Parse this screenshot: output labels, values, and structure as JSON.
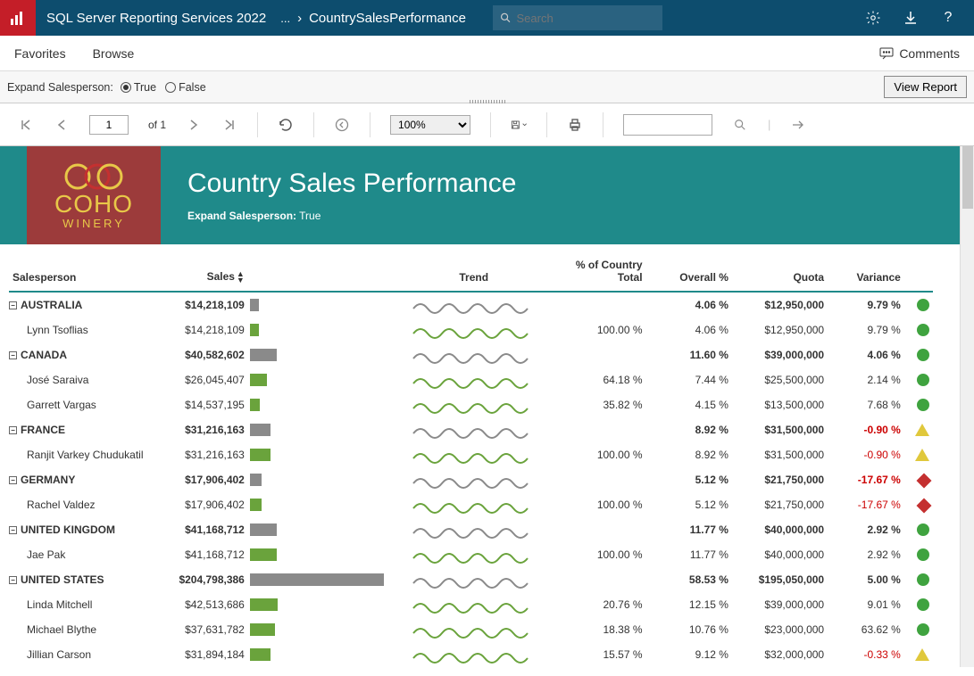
{
  "header": {
    "app_title": "SQL Server Reporting Services 2022",
    "ellipsis": "...",
    "chevron": "›",
    "page_name": "CountrySalesPerformance",
    "search_placeholder": "Search"
  },
  "menubar": {
    "favorites": "Favorites",
    "browse": "Browse",
    "comments": "Comments"
  },
  "params": {
    "label": "Expand Salesperson:",
    "true_label": "True",
    "false_label": "False",
    "selected": "true",
    "view_btn": "View Report"
  },
  "toolbar": {
    "page_value": "1",
    "page_of": "of 1",
    "zoom": "100%"
  },
  "banner": {
    "logo_top": "COHO",
    "logo_bottom": "WINERY",
    "title": "Country Sales Performance",
    "sub_label": "Expand Salesperson:",
    "sub_value": "True"
  },
  "columns": {
    "salesperson": "Salesperson",
    "sales": "Sales",
    "trend": "Trend",
    "pct_country": "% of Country Total",
    "overall": "Overall %",
    "quota": "Quota",
    "variance": "Variance"
  },
  "max_sales": 204798386,
  "groups": [
    {
      "country": "AUSTRALIA",
      "sales": "$14,218,109",
      "sales_n": 14218109,
      "overall": "4.06 %",
      "quota": "$12,950,000",
      "variance": "9.79 %",
      "var_neg": false,
      "ind": "green",
      "people": [
        {
          "name": "Lynn Tsoflias",
          "sales": "$14,218,109",
          "sales_n": 14218109,
          "pct": "100.00 %",
          "overall": "4.06 %",
          "quota": "$12,950,000",
          "variance": "9.79 %",
          "var_neg": false,
          "ind": "green"
        }
      ]
    },
    {
      "country": "CANADA",
      "sales": "$40,582,602",
      "sales_n": 40582602,
      "overall": "11.60 %",
      "quota": "$39,000,000",
      "variance": "4.06 %",
      "var_neg": false,
      "ind": "green",
      "people": [
        {
          "name": "José Saraiva",
          "sales": "$26,045,407",
          "sales_n": 26045407,
          "pct": "64.18 %",
          "overall": "7.44 %",
          "quota": "$25,500,000",
          "variance": "2.14 %",
          "var_neg": false,
          "ind": "green"
        },
        {
          "name": "Garrett Vargas",
          "sales": "$14,537,195",
          "sales_n": 14537195,
          "pct": "35.82 %",
          "overall": "4.15 %",
          "quota": "$13,500,000",
          "variance": "7.68 %",
          "var_neg": false,
          "ind": "green"
        }
      ]
    },
    {
      "country": "FRANCE",
      "sales": "$31,216,163",
      "sales_n": 31216163,
      "overall": "8.92 %",
      "quota": "$31,500,000",
      "variance": "-0.90 %",
      "var_neg": true,
      "ind": "yellow",
      "people": [
        {
          "name": "Ranjit Varkey Chudukatil",
          "sales": "$31,216,163",
          "sales_n": 31216163,
          "pct": "100.00 %",
          "overall": "8.92 %",
          "quota": "$31,500,000",
          "variance": "-0.90 %",
          "var_neg": true,
          "ind": "yellow"
        }
      ]
    },
    {
      "country": "GERMANY",
      "sales": "$17,906,402",
      "sales_n": 17906402,
      "overall": "5.12 %",
      "quota": "$21,750,000",
      "variance": "-17.67 %",
      "var_neg": true,
      "ind": "red",
      "people": [
        {
          "name": "Rachel Valdez",
          "sales": "$17,906,402",
          "sales_n": 17906402,
          "pct": "100.00 %",
          "overall": "5.12 %",
          "quota": "$21,750,000",
          "variance": "-17.67 %",
          "var_neg": true,
          "ind": "red"
        }
      ]
    },
    {
      "country": "UNITED KINGDOM",
      "sales": "$41,168,712",
      "sales_n": 41168712,
      "overall": "11.77 %",
      "quota": "$40,000,000",
      "variance": "2.92 %",
      "var_neg": false,
      "ind": "green",
      "people": [
        {
          "name": "Jae Pak",
          "sales": "$41,168,712",
          "sales_n": 41168712,
          "pct": "100.00 %",
          "overall": "11.77 %",
          "quota": "$40,000,000",
          "variance": "2.92 %",
          "var_neg": false,
          "ind": "green"
        }
      ]
    },
    {
      "country": "UNITED STATES",
      "sales": "$204,798,386",
      "sales_n": 204798386,
      "overall": "58.53 %",
      "quota": "$195,050,000",
      "variance": "5.00 %",
      "var_neg": false,
      "ind": "green",
      "people": [
        {
          "name": "Linda Mitchell",
          "sales": "$42,513,686",
          "sales_n": 42513686,
          "pct": "20.76 %",
          "overall": "12.15 %",
          "quota": "$39,000,000",
          "variance": "9.01 %",
          "var_neg": false,
          "ind": "green"
        },
        {
          "name": "Michael Blythe",
          "sales": "$37,631,782",
          "sales_n": 37631782,
          "pct": "18.38 %",
          "overall": "10.76 %",
          "quota": "$23,000,000",
          "variance": "63.62 %",
          "var_neg": false,
          "ind": "green"
        },
        {
          "name": "Jillian Carson",
          "sales": "$31,894,184",
          "sales_n": 31894184,
          "pct": "15.57 %",
          "overall": "9.12 %",
          "quota": "$32,000,000",
          "variance": "-0.33 %",
          "var_neg": true,
          "ind": "yellow"
        }
      ]
    }
  ],
  "colors": {
    "banner_bg": "#1f8a8a",
    "logo_bg": "#9c3b3b",
    "logo_text": "#e8c848",
    "bar_country": "#8a8a8a",
    "bar_person": "#6aa33c",
    "trend_country": "#8a8a8a",
    "trend_person": "#6aa33c",
    "ind_green": "#3fa33f",
    "ind_yellow": "#e0c83c",
    "ind_red": "#c43030",
    "neg_text": "#cc0000",
    "header_bg": "#0d4d6e"
  }
}
